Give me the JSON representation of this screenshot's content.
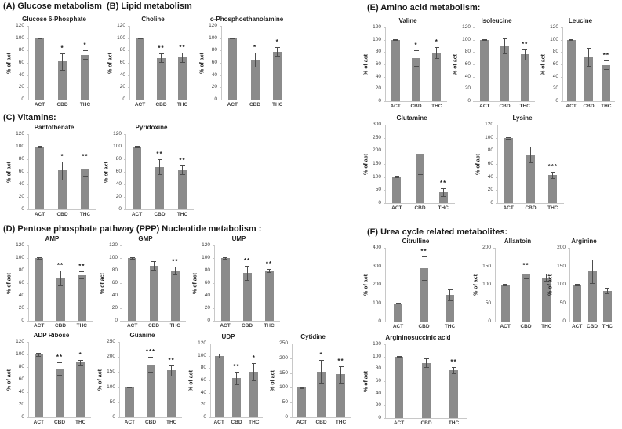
{
  "colors": {
    "bar": "#8b8b8b",
    "error_bar": "#4d4d4d",
    "axis_line": "#c8c8c8",
    "tick_text": "#3f3f3f",
    "title_text": "#1f1f1f"
  },
  "chart_data": {
    "type": "bar",
    "panels": [
      {
        "id": "A",
        "title": "(A) Glucose metabolism",
        "charts": [
          {
            "type": "bar",
            "title": "Glucose 6-Phosphate",
            "ylabel": "% of act",
            "categories": [
              "ACT",
              "CBD",
              "THC"
            ],
            "values": [
              100,
              62,
              73
            ],
            "errors": [
              1,
              13,
              7
            ],
            "sig": [
              "",
              "*",
              "*"
            ],
            "ylim": [
              0,
              120
            ],
            "ytick_step": 20
          }
        ]
      },
      {
        "id": "B",
        "title": "(B) Lipid metabolism",
        "charts": [
          {
            "type": "bar",
            "title": "Choline",
            "ylabel": "% of act",
            "categories": [
              "ACT",
              "CBD",
              "THC"
            ],
            "values": [
              100,
              68,
              69
            ],
            "errors": [
              1,
              7,
              8
            ],
            "sig": [
              "",
              "**",
              "**"
            ],
            "ylim": [
              0,
              120
            ],
            "ytick_step": 20
          },
          {
            "type": "bar",
            "title": "o-Phosphoethanolamine",
            "ylabel": "% of act",
            "categories": [
              "ACT",
              "CBD",
              "THC"
            ],
            "values": [
              100,
              65,
              78
            ],
            "errors": [
              1,
              12,
              8
            ],
            "sig": [
              "",
              "*",
              "*"
            ],
            "ylim": [
              0,
              120
            ],
            "ytick_step": 20
          }
        ]
      },
      {
        "id": "C",
        "title": "(C) Vitamins:",
        "charts": [
          {
            "type": "bar",
            "title": "Pantothenate",
            "ylabel": "% of act",
            "categories": [
              "ACT",
              "CBD",
              "THC"
            ],
            "values": [
              100,
              62,
              64
            ],
            "errors": [
              1,
              14,
              12
            ],
            "sig": [
              "",
              "*",
              "**"
            ],
            "ylim": [
              0,
              120
            ],
            "ytick_step": 20
          },
          {
            "type": "bar",
            "title": "Pyridoxine",
            "ylabel": "% of act",
            "categories": [
              "ACT",
              "CBD",
              "THC"
            ],
            "values": [
              100,
              68,
              63
            ],
            "errors": [
              1,
              12,
              7
            ],
            "sig": [
              "",
              "**",
              "**"
            ],
            "ylim": [
              0,
              120
            ],
            "ytick_step": 20
          }
        ]
      },
      {
        "id": "D",
        "title": "(D) Pentose phosphate pathway (PPP) Nucleotide metabolism :",
        "charts": [
          {
            "type": "bar",
            "title": "AMP",
            "ylabel": "% of act",
            "categories": [
              "ACT",
              "CBD",
              "THC"
            ],
            "values": [
              100,
              68,
              73
            ],
            "errors": [
              1,
              12,
              6
            ],
            "sig": [
              "",
              "**",
              "**"
            ],
            "ylim": [
              0,
              120
            ],
            "ytick_step": 20
          },
          {
            "type": "bar",
            "title": "GMP",
            "ylabel": "% of act",
            "categories": [
              "ACT",
              "CBD",
              "THC"
            ],
            "values": [
              100,
              88,
              80
            ],
            "errors": [
              1,
              7,
              6
            ],
            "sig": [
              "",
              "",
              "**"
            ],
            "ylim": [
              0,
              120
            ],
            "ytick_step": 20
          },
          {
            "type": "bar",
            "title": "UMP",
            "ylabel": "% of act",
            "categories": [
              "ACT",
              "CBD",
              "THC"
            ],
            "values": [
              100,
              76,
              80
            ],
            "errors": [
              1,
              11,
              3
            ],
            "sig": [
              "",
              "**",
              "**"
            ],
            "ylim": [
              0,
              120
            ],
            "ytick_step": 20
          },
          {
            "type": "bar",
            "title": "ADP Ribose",
            "ylabel": "% of act",
            "categories": [
              "ACT",
              "CBD",
              "THC"
            ],
            "values": [
              100,
              77,
              87
            ],
            "errors": [
              2,
              10,
              4
            ],
            "sig": [
              "",
              "**",
              "*"
            ],
            "ylim": [
              0,
              120
            ],
            "ytick_step": 20
          },
          {
            "type": "bar",
            "title": "Guanine",
            "ylabel": "% of act",
            "categories": [
              "ACT",
              "CBD",
              "THC"
            ],
            "values": [
              100,
              175,
              155
            ],
            "errors": [
              2,
              25,
              18
            ],
            "sig": [
              "",
              "***",
              "**"
            ],
            "ylim": [
              0,
              250
            ],
            "ytick_step": 50
          },
          {
            "type": "bar",
            "title": "UDP",
            "ylabel": "% of act",
            "categories": [
              "ACT",
              "CBD",
              "THC"
            ],
            "values": [
              100,
              64,
              74
            ],
            "errors": [
              3,
              10,
              14
            ],
            "sig": [
              "",
              "**",
              "*"
            ],
            "ylim": [
              0,
              120
            ],
            "ytick_step": 20
          },
          {
            "type": "bar",
            "title": "Cytidine",
            "ylabel": "% of act",
            "categories": [
              "ACT",
              "CBD",
              "THC"
            ],
            "values": [
              100,
              155,
              145
            ],
            "errors": [
              2,
              38,
              28
            ],
            "sig": [
              "",
              "*",
              "**"
            ],
            "ylim": [
              0,
              250
            ],
            "ytick_step": 50
          }
        ]
      },
      {
        "id": "E",
        "title": "(E) Amino acid metabolism:",
        "charts": [
          {
            "type": "bar",
            "title": "Valine",
            "ylabel": "% of act",
            "categories": [
              "ACT",
              "CBD",
              "THC"
            ],
            "values": [
              100,
              70,
              79
            ],
            "errors": [
              1,
              13,
              9
            ],
            "sig": [
              "",
              "*",
              "*"
            ],
            "ylim": [
              0,
              120
            ],
            "ytick_step": 20
          },
          {
            "type": "bar",
            "title": "Isoleucine",
            "ylabel": "% of act",
            "categories": [
              "ACT",
              "CBD",
              "THC"
            ],
            "values": [
              100,
              90,
              76
            ],
            "errors": [
              1,
              12,
              8
            ],
            "sig": [
              "",
              "",
              "**"
            ],
            "ylim": [
              0,
              120
            ],
            "ytick_step": 20
          },
          {
            "type": "bar",
            "title": "Leucine",
            "ylabel": "% of act",
            "categories": [
              "ACT",
              "CBD",
              "THC"
            ],
            "values": [
              100,
              72,
              59
            ],
            "errors": [
              1,
              15,
              7
            ],
            "sig": [
              "",
              "",
              "**"
            ],
            "ylim": [
              0,
              120
            ],
            "ytick_step": 20
          },
          {
            "type": "bar",
            "title": "Glutamine",
            "ylabel": "% of act",
            "categories": [
              "ACT",
              "CBD",
              "THC"
            ],
            "values": [
              100,
              190,
              42
            ],
            "errors": [
              2,
              80,
              15
            ],
            "sig": [
              "",
              "",
              "**"
            ],
            "ylim": [
              0,
              300
            ],
            "ytick_step": 50
          },
          {
            "type": "bar",
            "title": "Lysine",
            "ylabel": "% of act",
            "categories": [
              "ACT",
              "CBD",
              "THC"
            ],
            "values": [
              100,
              75,
              43
            ],
            "errors": [
              1,
              12,
              5
            ],
            "sig": [
              "",
              "",
              "***"
            ],
            "ylim": [
              0,
              120
            ],
            "ytick_step": 20
          }
        ]
      },
      {
        "id": "F",
        "title": "(F) Urea cycle related metabolites:",
        "charts": [
          {
            "type": "bar",
            "title": "Citrulline",
            "ylabel": "% of act",
            "categories": [
              "ACT",
              "CBD",
              "THC"
            ],
            "values": [
              100,
              290,
              145
            ],
            "errors": [
              3,
              65,
              30
            ],
            "sig": [
              "",
              "**",
              ""
            ],
            "ylim": [
              0,
              400
            ],
            "ytick_step": 100
          },
          {
            "type": "bar",
            "title": "Allantoin",
            "ylabel": "% of act",
            "categories": [
              "ACT",
              "CBD",
              "THC"
            ],
            "values": [
              100,
              128,
              120
            ],
            "errors": [
              2,
              10,
              9
            ],
            "sig": [
              "",
              "**",
              ""
            ],
            "ylim": [
              0,
              200
            ],
            "ytick_step": 50
          },
          {
            "type": "bar",
            "title": "Arginine",
            "ylabel": "% of act",
            "categories": [
              "ACT",
              "CBD",
              "THC"
            ],
            "values": [
              100,
              137,
              84
            ],
            "errors": [
              3,
              32,
              8
            ],
            "sig": [
              "",
              "",
              ""
            ],
            "ylim": [
              0,
              200
            ],
            "ytick_step": 50
          },
          {
            "type": "bar",
            "title": "Argininosuccinic acid",
            "ylabel": "% of act",
            "categories": [
              "ACT",
              "CBD",
              "THC"
            ],
            "values": [
              100,
              90,
              78
            ],
            "errors": [
              1,
              7,
              5
            ],
            "sig": [
              "",
              "",
              "**"
            ],
            "ylim": [
              0,
              120
            ],
            "ytick_step": 20
          }
        ]
      }
    ]
  }
}
